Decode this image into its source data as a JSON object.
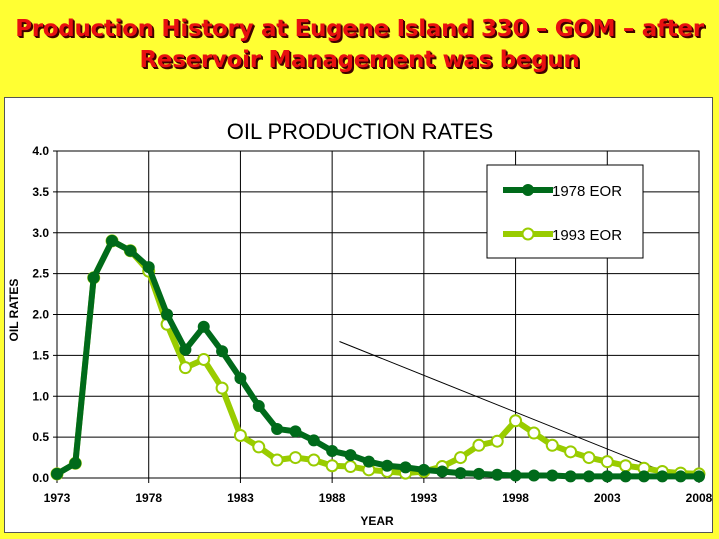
{
  "slide": {
    "title_line1": "Production History at Eugene Island 330 – GOM – after",
    "title_line2": "Reservoir Management was begun"
  },
  "chart_data": {
    "type": "line",
    "title": "OIL PRODUCTION RATES",
    "xlabel": "YEAR",
    "ylabel": "OIL RATES",
    "xlim": [
      1973,
      2008
    ],
    "ylim": [
      0,
      4.0
    ],
    "x_ticks": [
      1973,
      1978,
      1983,
      1988,
      1993,
      1998,
      2003,
      2008
    ],
    "y_ticks": [
      "0.0",
      "0.5",
      "1.0",
      "1.5",
      "2.0",
      "2.5",
      "3.0",
      "3.5",
      "4.0"
    ],
    "grid": true,
    "legend_position": "top-right",
    "x": [
      1973,
      1974,
      1975,
      1976,
      1977,
      1978,
      1979,
      1980,
      1981,
      1982,
      1983,
      1984,
      1985,
      1986,
      1987,
      1988,
      1989,
      1990,
      1991,
      1992,
      1993,
      1994,
      1995,
      1996,
      1997,
      1998,
      1999,
      2000,
      2001,
      2002,
      2003,
      2004,
      2005,
      2006,
      2007,
      2008
    ],
    "series": [
      {
        "name": "1978 EOR",
        "color": "#006a1a",
        "marker": "filled-circle",
        "values": [
          0.05,
          0.18,
          2.45,
          2.9,
          2.78,
          2.58,
          2.0,
          1.57,
          1.85,
          1.55,
          1.22,
          0.88,
          0.6,
          0.57,
          0.46,
          0.33,
          0.28,
          0.2,
          0.15,
          0.13,
          0.1,
          0.08,
          0.06,
          0.05,
          0.04,
          0.03,
          0.03,
          0.03,
          0.02,
          0.02,
          0.02,
          0.02,
          0.02,
          0.02,
          0.02,
          0.02
        ]
      },
      {
        "name": "1993 EOR",
        "color": "#99cc00",
        "marker": "open-circle",
        "values": [
          0.05,
          0.18,
          2.45,
          2.9,
          2.78,
          2.53,
          1.88,
          1.35,
          1.45,
          1.1,
          0.52,
          0.38,
          0.22,
          0.25,
          0.22,
          0.15,
          0.14,
          0.1,
          0.08,
          0.06,
          0.08,
          0.14,
          0.25,
          0.4,
          0.45,
          0.7,
          0.55,
          0.4,
          0.32,
          0.25,
          0.2,
          0.15,
          0.12,
          0.08,
          0.06,
          0.05
        ]
      }
    ],
    "annotations": [
      {
        "type": "trend-line",
        "x": [
          1988.4,
          2006.5
        ],
        "y": [
          1.67,
          0.04
        ],
        "color": "#000000"
      }
    ]
  }
}
